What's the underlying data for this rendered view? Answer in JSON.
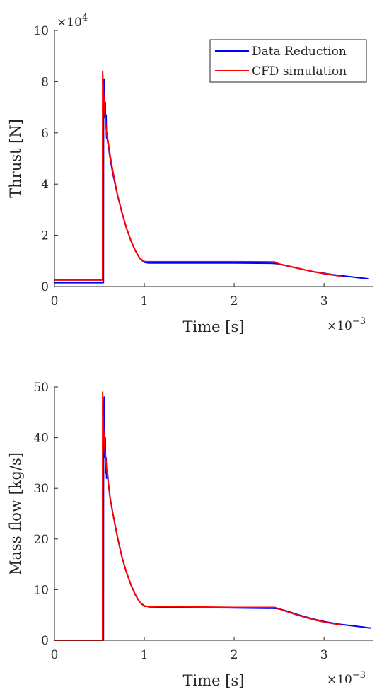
{
  "chart_data": [
    {
      "type": "line",
      "xlabel": "Time [s]",
      "ylabel": "Thrust [N]",
      "x_multiplier_label": {
        "base": "×10",
        "exp": "−3"
      },
      "y_multiplier_label": {
        "base": "×10",
        "exp": "4"
      },
      "xlim": [
        0,
        3.55
      ],
      "ylim": [
        0,
        10
      ],
      "x_ticks": [
        0,
        1,
        2,
        3
      ],
      "x_tick_labels": [
        "0",
        "1",
        "2",
        "3"
      ],
      "y_ticks": [
        0,
        2,
        4,
        6,
        8,
        10
      ],
      "y_tick_labels": [
        "0",
        "2",
        "4",
        "6",
        "8",
        "10"
      ],
      "grid": false,
      "legend_position": "top-right",
      "series": [
        {
          "name": "Data Reduction",
          "color": "#0000ff",
          "x": [
            0.0,
            0.545,
            0.546,
            0.555,
            0.56,
            0.565,
            0.57,
            0.575,
            0.58,
            0.585,
            0.59,
            0.6,
            0.62,
            0.65,
            0.7,
            0.75,
            0.8,
            0.85,
            0.9,
            0.95,
            1.0,
            1.02,
            1.05,
            1.5,
            2.0,
            2.4,
            2.45,
            2.5,
            2.6,
            2.7,
            2.8,
            2.9,
            3.0,
            3.1,
            3.2,
            3.3,
            3.4,
            3.5
          ],
          "y": [
            0.15,
            0.15,
            7.0,
            8.1,
            6.6,
            7.2,
            6.2,
            6.7,
            5.8,
            6.0,
            5.7,
            5.5,
            5.0,
            4.4,
            3.6,
            2.9,
            2.3,
            1.8,
            1.4,
            1.1,
            0.95,
            0.93,
            0.92,
            0.92,
            0.92,
            0.91,
            0.9,
            0.88,
            0.8,
            0.72,
            0.64,
            0.57,
            0.52,
            0.46,
            0.42,
            0.38,
            0.34,
            0.3
          ]
        },
        {
          "name": "CFD simulation",
          "color": "#ff0000",
          "x": [
            0.0,
            0.535,
            0.536,
            0.545,
            0.56,
            0.58,
            0.6,
            0.62,
            0.65,
            0.7,
            0.75,
            0.8,
            0.85,
            0.9,
            0.95,
            1.0,
            1.02,
            1.05,
            1.5,
            2.0,
            2.45,
            2.5,
            2.6,
            2.7,
            2.8,
            2.9,
            3.0,
            3.1,
            3.2
          ],
          "y": [
            0.25,
            0.25,
            8.4,
            7.6,
            6.8,
            6.0,
            5.6,
            5.1,
            4.5,
            3.6,
            2.9,
            2.3,
            1.8,
            1.4,
            1.1,
            0.98,
            0.97,
            0.97,
            0.97,
            0.97,
            0.96,
            0.88,
            0.8,
            0.72,
            0.64,
            0.57,
            0.5,
            0.45,
            0.4
          ]
        }
      ]
    },
    {
      "type": "line",
      "xlabel": "Time [s]",
      "ylabel": "Mass flow [kg/s]",
      "x_multiplier_label": {
        "base": "×10",
        "exp": "−3"
      },
      "xlim": [
        0,
        3.55
      ],
      "ylim": [
        0,
        50
      ],
      "x_ticks": [
        0,
        1,
        2,
        3
      ],
      "x_tick_labels": [
        "0",
        "1",
        "2",
        "3"
      ],
      "y_ticks": [
        0,
        10,
        20,
        30,
        40,
        50
      ],
      "y_tick_labels": [
        "0",
        "10",
        "20",
        "30",
        "40",
        "50"
      ],
      "grid": false,
      "series": [
        {
          "color": "#0000ff",
          "x": [
            0.0,
            0.545,
            0.546,
            0.555,
            0.56,
            0.565,
            0.57,
            0.575,
            0.58,
            0.59,
            0.6,
            0.62,
            0.65,
            0.7,
            0.75,
            0.8,
            0.85,
            0.9,
            0.95,
            1.0,
            1.05,
            1.5,
            2.0,
            2.45,
            2.5,
            2.6,
            2.7,
            2.8,
            2.9,
            3.0,
            3.1,
            3.2,
            3.3,
            3.4,
            3.52
          ],
          "y": [
            0.0,
            0.0,
            40.0,
            48.0,
            36.0,
            40.0,
            33.0,
            36.0,
            32.0,
            33.0,
            31.0,
            28.0,
            25.0,
            20.5,
            16.5,
            13.5,
            11.0,
            9.0,
            7.5,
            6.8,
            6.6,
            6.5,
            6.4,
            6.3,
            6.2,
            5.7,
            5.1,
            4.6,
            4.1,
            3.7,
            3.4,
            3.1,
            2.9,
            2.7,
            2.4
          ]
        },
        {
          "color": "#ff0000",
          "x": [
            0.0,
            0.535,
            0.536,
            0.545,
            0.56,
            0.58,
            0.6,
            0.62,
            0.65,
            0.7,
            0.75,
            0.8,
            0.85,
            0.9,
            0.95,
            1.0,
            1.05,
            1.5,
            2.0,
            2.45,
            2.5,
            2.6,
            2.7,
            2.8,
            2.9,
            3.0,
            3.1,
            3.2
          ],
          "y": [
            0.0,
            0.0,
            49.0,
            42.0,
            38.0,
            34.0,
            31.0,
            28.0,
            25.0,
            20.5,
            16.5,
            13.5,
            11.0,
            9.0,
            7.5,
            6.7,
            6.7,
            6.6,
            6.5,
            6.5,
            6.2,
            5.6,
            5.0,
            4.5,
            4.0,
            3.6,
            3.3,
            3.0
          ]
        }
      ]
    }
  ]
}
